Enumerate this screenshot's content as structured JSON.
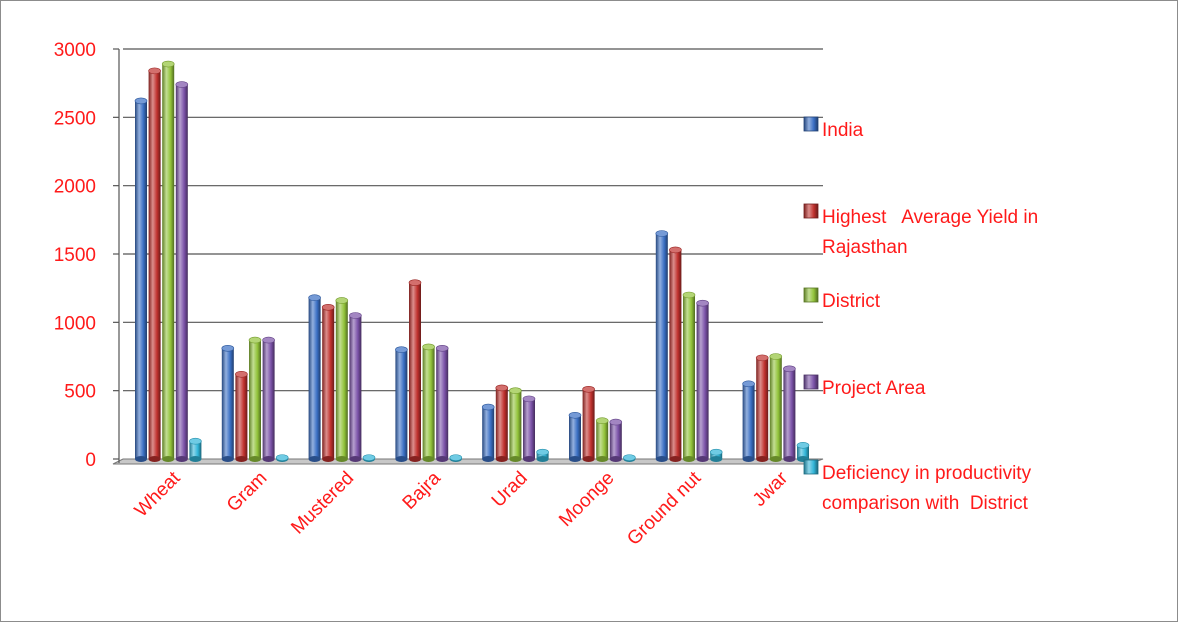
{
  "chart_data": {
    "type": "bar",
    "categories": [
      "Wheat",
      "Gram",
      "Mustered",
      "Bajra",
      "Urad",
      "Moonge",
      "Ground nut",
      "Jwar"
    ],
    "series": [
      {
        "name": "India",
        "values": [
          2620,
          810,
          1180,
          800,
          380,
          320,
          1650,
          550
        ],
        "color": "#3a6fc4"
      },
      {
        "name": "Highest   Average Yield in Rajasthan",
        "values": [
          2840,
          620,
          1110,
          1290,
          520,
          510,
          1530,
          740
        ],
        "color": "#c0312e"
      },
      {
        "name": "District",
        "values": [
          2890,
          870,
          1160,
          820,
          500,
          280,
          1200,
          750
        ],
        "color": "#92c33a"
      },
      {
        "name": "Project Area",
        "values": [
          2740,
          870,
          1050,
          810,
          440,
          270,
          1140,
          660
        ],
        "color": "#7b52a8"
      },
      {
        "name": "Deficiency in productivity comparison with  District",
        "values": [
          130,
          10,
          10,
          10,
          50,
          10,
          50,
          100
        ],
        "color": "#31b5d8"
      }
    ],
    "ylim": [
      0,
      3000
    ],
    "yticks": [
      "0",
      "500",
      "1000",
      "1500",
      "2000",
      "2500",
      "3000"
    ],
    "grid": true,
    "legend_position": "right",
    "legend_lines": [
      [
        "India"
      ],
      [
        "Highest   Average Yield in",
        "Rajasthan"
      ],
      [
        "District"
      ],
      [
        "Project Area"
      ],
      [
        "Deficiency in productivity",
        "comparison with  District"
      ]
    ]
  }
}
